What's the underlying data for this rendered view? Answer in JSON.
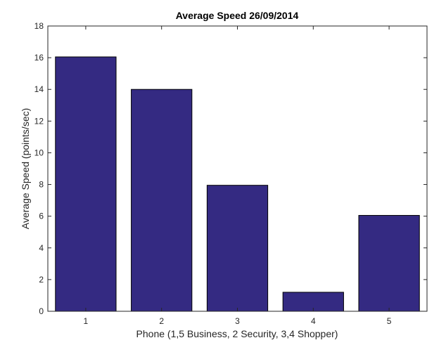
{
  "chart_data": {
    "type": "bar",
    "title": "Average Speed 26/09/2014",
    "xlabel": "Phone (1,5 Business, 2 Security, 3,4 Shopper)",
    "ylabel": "Average Speed (points/sec)",
    "categories": [
      "1",
      "2",
      "3",
      "4",
      "5"
    ],
    "values": [
      16.05,
      14.0,
      7.95,
      1.2,
      6.05
    ],
    "ylim": [
      0,
      18
    ],
    "yticks": [
      "0",
      "2",
      "4",
      "6",
      "8",
      "10",
      "12",
      "14",
      "16",
      "18"
    ],
    "grid": false,
    "bar_color": "#342a82",
    "bar_edge_color": "#000000"
  }
}
